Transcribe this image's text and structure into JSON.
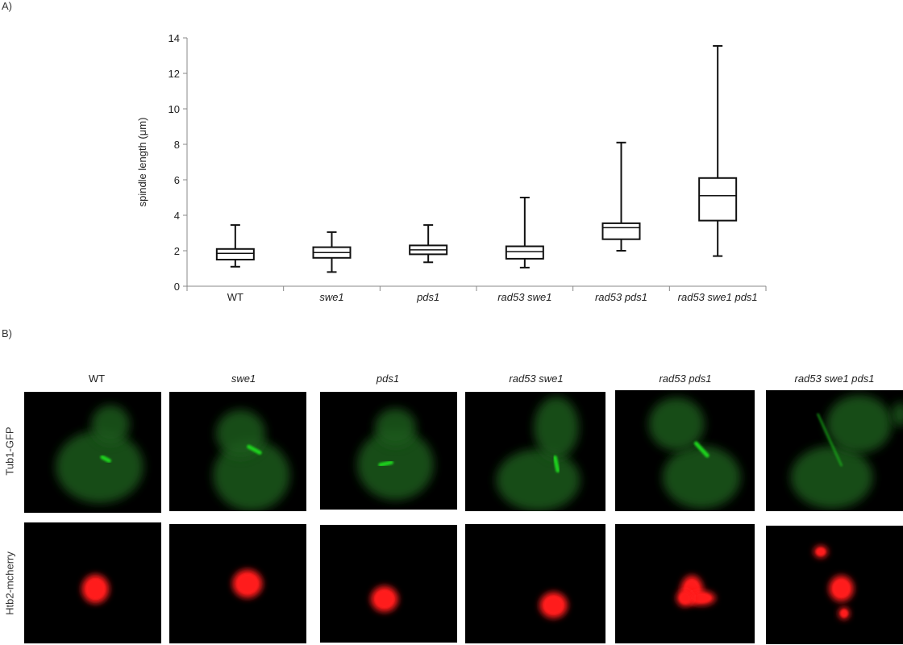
{
  "panel_a_label": "A)",
  "panel_b_label": "B)",
  "chart_data": {
    "type": "box",
    "ylabel": "spindle length (μm)",
    "ylim": [
      0,
      14
    ],
    "yticks": [
      0,
      2,
      4,
      6,
      8,
      10,
      12,
      14
    ],
    "categories": [
      "WT",
      "swe1",
      "pds1",
      "rad53 swe1",
      "rad53 pds1",
      "rad53 swe1 pds1"
    ],
    "italic_categories": [
      false,
      true,
      true,
      true,
      true,
      true
    ],
    "boxes": [
      {
        "min": 1.1,
        "q1": 1.5,
        "median": 1.85,
        "q3": 2.1,
        "max": 3.45
      },
      {
        "min": 0.8,
        "q1": 1.6,
        "median": 1.9,
        "q3": 2.2,
        "max": 3.05
      },
      {
        "min": 1.35,
        "q1": 1.8,
        "median": 2.05,
        "q3": 2.3,
        "max": 3.45
      },
      {
        "min": 1.05,
        "q1": 1.55,
        "median": 1.95,
        "q3": 2.25,
        "max": 5.0
      },
      {
        "min": 2.0,
        "q1": 2.65,
        "median": 3.3,
        "q3": 3.55,
        "max": 8.1
      },
      {
        "min": 1.7,
        "q1": 3.7,
        "median": 5.1,
        "q3": 6.1,
        "max": 13.55
      }
    ]
  },
  "micrographs": {
    "columns": [
      "WT",
      "swe1",
      "pds1",
      "rad53 swe1",
      "rad53 pds1",
      "rad53 swe1 pds1"
    ],
    "italic_columns": [
      false,
      true,
      true,
      true,
      true,
      true
    ],
    "rows": [
      "Tub1-GFP",
      "Htb2-mcherry"
    ],
    "colors": {
      "gfp": "#1fd21f",
      "gfp_cell": "#1d5a1d",
      "mcherry": "#ff1a1a",
      "background": "#000000"
    }
  }
}
